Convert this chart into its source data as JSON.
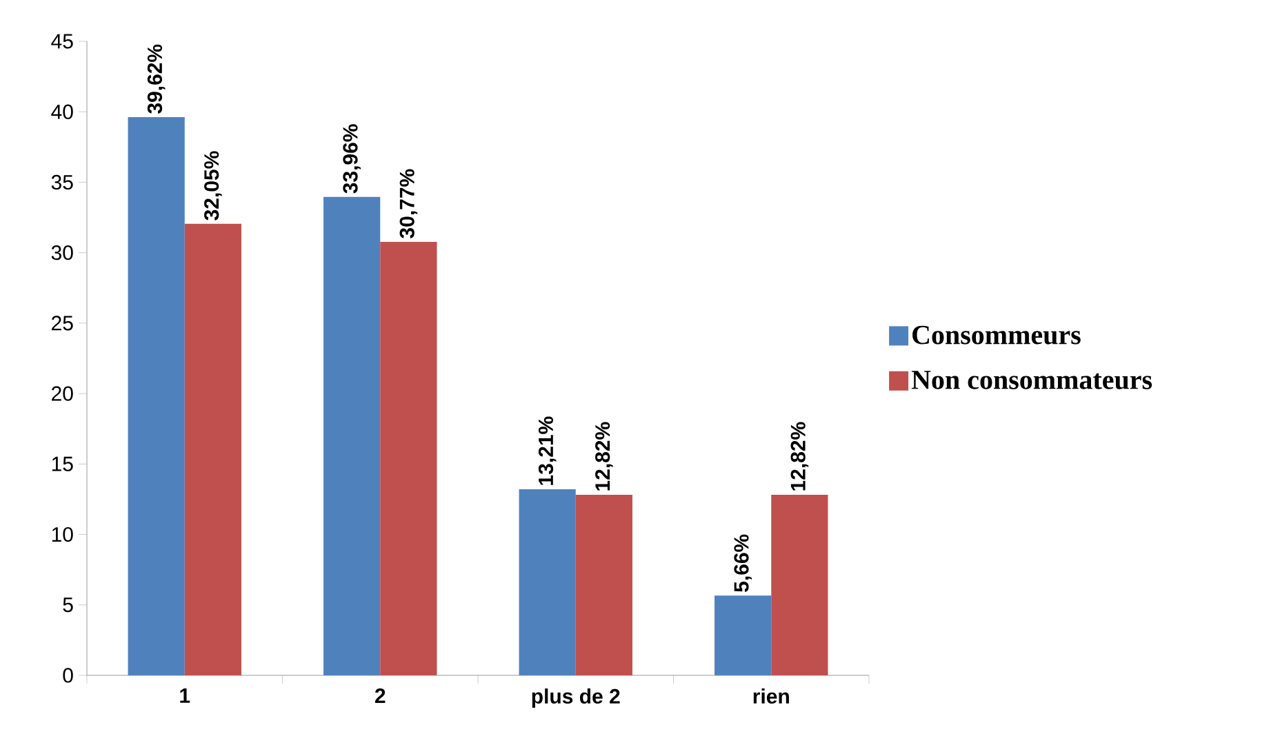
{
  "chart_data": {
    "type": "bar",
    "categories": [
      "1",
      "2",
      "plus de 2",
      "rien"
    ],
    "series": [
      {
        "name": "Consommeurs",
        "color": "#4f81bd",
        "values": [
          39.62,
          33.96,
          13.21,
          5.66
        ],
        "value_labels": [
          "39,62%",
          "33,96%",
          "13,21%",
          "5,66%"
        ]
      },
      {
        "name": "Non consommateurs",
        "color": "#c0504d",
        "values": [
          32.05,
          30.77,
          12.82,
          12.82
        ],
        "value_labels": [
          "32,05%",
          "30,77%",
          "12,82%",
          "12,82%"
        ]
      }
    ],
    "ylim": [
      0,
      45
    ],
    "yticks": [
      0,
      5,
      10,
      15,
      20,
      25,
      30,
      35,
      40,
      45
    ],
    "legend": "right"
  }
}
